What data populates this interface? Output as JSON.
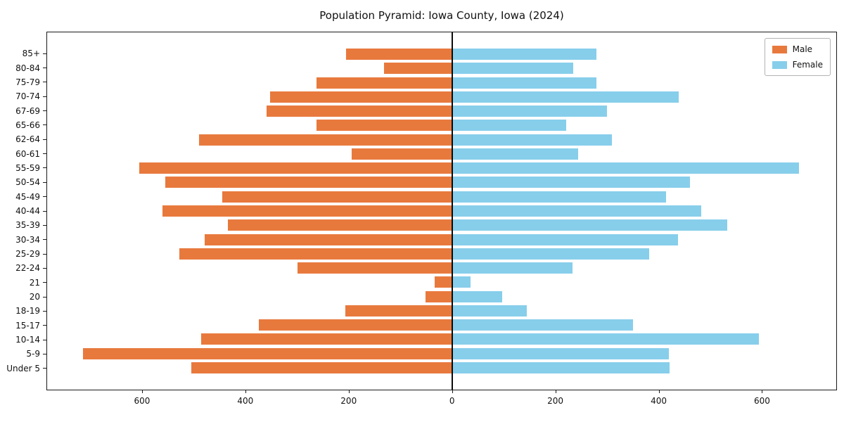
{
  "title": "Population Pyramid: Iowa County, Iowa (2024)",
  "chart_data": {
    "type": "bar",
    "subtype": "population-pyramid",
    "title": "Population Pyramid: Iowa County, Iowa (2024)",
    "xlabel": "",
    "ylabel": "",
    "grid": false,
    "legend_position": "upper right",
    "categories": [
      "85+",
      "80-84",
      "75-79",
      "70-74",
      "67-69",
      "65-66",
      "62-64",
      "60-61",
      "55-59",
      "50-54",
      "45-49",
      "40-44",
      "35-39",
      "30-34",
      "25-29",
      "22-24",
      "21",
      "20",
      "18-19",
      "15-17",
      "10-14",
      "5-9",
      "Under 5"
    ],
    "series": [
      {
        "name": "Male",
        "direction": "left",
        "values": [
          205,
          132,
          263,
          353,
          360,
          263,
          490,
          195,
          607,
          556,
          446,
          561,
          435,
          480,
          528,
          300,
          33,
          52,
          207,
          375,
          487,
          716,
          505
        ]
      },
      {
        "name": "Female",
        "direction": "right",
        "values": [
          280,
          235,
          280,
          440,
          300,
          222,
          310,
          245,
          673,
          461,
          415,
          483,
          533,
          438,
          382,
          234,
          36,
          97,
          145,
          351,
          595,
          420,
          422
        ]
      }
    ],
    "colors": {
      "male": "#e8793d",
      "female": "#87ceeb",
      "axis": "#1a1a1a"
    },
    "xlim": [
      -785,
      745
    ],
    "x_tick_values": [
      -600,
      -400,
      -200,
      0,
      200,
      400,
      600
    ],
    "x_tick_labels": [
      "600",
      "400",
      "200",
      "0",
      "200",
      "400",
      "600"
    ]
  }
}
